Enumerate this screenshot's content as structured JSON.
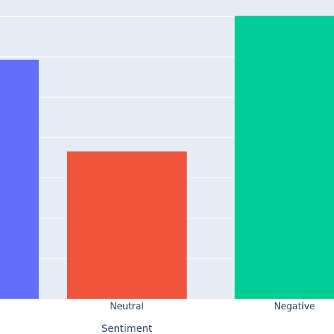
{
  "chart_data": {
    "type": "bar",
    "xlabel": "Sentiment",
    "categories": [
      "",
      "Neutral",
      "Negative"
    ],
    "values": [
      60,
      37,
      71
    ],
    "colors": [
      "#636efa",
      "#ef553b",
      "#00cc96"
    ],
    "ylim": [
      0,
      75
    ],
    "grid": true,
    "plot_background": "#e5ecf6",
    "gridline_color": "#ffffff"
  }
}
